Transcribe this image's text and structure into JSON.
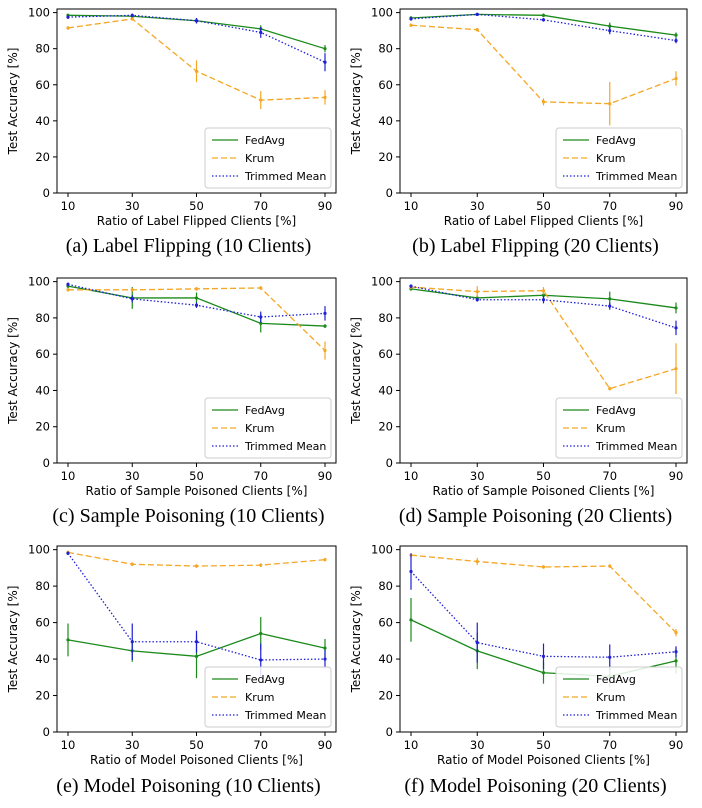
{
  "colors": {
    "fedavg": "#1a8a1a",
    "krum": "#f5a623",
    "trimmed": "#1f1fd6"
  },
  "chart_data": [
    {
      "type": "line",
      "caption": "(a) Label Flipping (10 Clients)",
      "xlabel": "Ratio of Label Flipped Clients [%]",
      "ylabel": "Test Accuracy [%]",
      "categories": [
        10,
        30,
        50,
        70,
        90
      ],
      "yticks": [
        0,
        20,
        40,
        60,
        80,
        100
      ],
      "ylim": [
        0,
        102
      ],
      "legend_position": "lower-right",
      "series": [
        {
          "name": "FedAvg",
          "style": "solid",
          "values": [
            98.5,
            98,
            95.5,
            91,
            80
          ],
          "err": [
            1,
            1,
            1.5,
            2,
            2
          ]
        },
        {
          "name": "Krum",
          "style": "dashed",
          "values": [
            91.5,
            96.5,
            67.5,
            51.5,
            53
          ],
          "err": [
            1,
            1,
            6,
            5,
            4
          ]
        },
        {
          "name": "Trimmed Mean",
          "style": "dotted",
          "values": [
            97.5,
            98.5,
            95.5,
            89,
            72.5
          ],
          "err": [
            1,
            1,
            1.5,
            3,
            5
          ]
        }
      ]
    },
    {
      "type": "line",
      "caption": "(b) Label Flipping (20 Clients)",
      "xlabel": "Ratio of Label Flipped Clients [%]",
      "ylabel": "Test Accuracy [%]",
      "categories": [
        10,
        30,
        50,
        70,
        90
      ],
      "yticks": [
        0,
        20,
        40,
        60,
        80,
        100
      ],
      "ylim": [
        0,
        102
      ],
      "legend_position": "lower-right",
      "series": [
        {
          "name": "FedAvg",
          "style": "solid",
          "values": [
            97,
            99,
            98.5,
            92.5,
            87.5
          ],
          "err": [
            1,
            0.5,
            1,
            2,
            1.5
          ]
        },
        {
          "name": "Krum",
          "style": "dashed",
          "values": [
            93,
            90.5,
            50.5,
            49.5,
            63.5
          ],
          "err": [
            1,
            1,
            2,
            12,
            4
          ]
        },
        {
          "name": "Trimmed Mean",
          "style": "dotted",
          "values": [
            96.5,
            99,
            96,
            90,
            84.5
          ],
          "err": [
            1,
            0.5,
            1,
            2,
            1.5
          ]
        }
      ]
    },
    {
      "type": "line",
      "caption": "(c) Sample Poisoning (10 Clients)",
      "xlabel": "Ratio of Sample Poisoned Clients [%]",
      "ylabel": "Test Accuracy [%]",
      "categories": [
        10,
        30,
        50,
        70,
        90
      ],
      "yticks": [
        0,
        20,
        40,
        60,
        80,
        100
      ],
      "ylim": [
        0,
        102
      ],
      "legend_position": "lower-right",
      "series": [
        {
          "name": "FedAvg",
          "style": "solid",
          "values": [
            97.5,
            91,
            91,
            77,
            75.5
          ],
          "err": [
            1,
            6,
            3,
            5,
            1
          ]
        },
        {
          "name": "Krum",
          "style": "dashed",
          "values": [
            95.5,
            95.5,
            96,
            96.5,
            62
          ],
          "err": [
            1,
            1,
            1,
            1,
            5
          ]
        },
        {
          "name": "Trimmed Mean",
          "style": "dotted",
          "values": [
            98.5,
            90.5,
            87,
            80.5,
            82.5
          ],
          "err": [
            1,
            2,
            1.5,
            3,
            4
          ]
        }
      ]
    },
    {
      "type": "line",
      "caption": "(d) Sample Poisoning (20 Clients)",
      "xlabel": "Ratio of Sample Poisoned Clients [%]",
      "ylabel": "Test Accuracy [%]",
      "categories": [
        10,
        30,
        50,
        70,
        90
      ],
      "yticks": [
        0,
        20,
        40,
        60,
        80,
        100
      ],
      "ylim": [
        0,
        102
      ],
      "legend_position": "lower-right",
      "series": [
        {
          "name": "FedAvg",
          "style": "solid",
          "values": [
            96,
            91,
            92.5,
            90.5,
            85.5
          ],
          "err": [
            1,
            1.5,
            2,
            4,
            3
          ]
        },
        {
          "name": "Krum",
          "style": "dashed",
          "values": [
            97,
            94.5,
            95,
            41,
            52
          ],
          "err": [
            1,
            3,
            2,
            1,
            14
          ]
        },
        {
          "name": "Trimmed Mean",
          "style": "dotted",
          "values": [
            97.5,
            90,
            90,
            86.5,
            74.5
          ],
          "err": [
            1,
            1,
            2,
            2,
            4
          ]
        }
      ]
    },
    {
      "type": "line",
      "caption": "(e) Model Poisoning (10 Clients)",
      "xlabel": "Ratio of Model Poisoned Clients [%]",
      "ylabel": "Test Accuracy [%]",
      "categories": [
        10,
        30,
        50,
        70,
        90
      ],
      "yticks": [
        0,
        20,
        40,
        60,
        80,
        100
      ],
      "ylim": [
        0,
        102
      ],
      "legend_position": "lower-right",
      "series": [
        {
          "name": "FedAvg",
          "style": "solid",
          "values": [
            50.5,
            44.5,
            41.5,
            54,
            46
          ],
          "err": [
            9,
            6,
            12,
            9,
            5
          ]
        },
        {
          "name": "Krum",
          "style": "dashed",
          "values": [
            98.5,
            92,
            91,
            91.5,
            94.5
          ],
          "err": [
            1,
            1,
            1,
            1,
            1
          ]
        },
        {
          "name": "Trimmed Mean",
          "style": "dotted",
          "values": [
            98,
            49.5,
            49.5,
            39.5,
            40
          ],
          "err": [
            1,
            10,
            6,
            9,
            5
          ]
        }
      ]
    },
    {
      "type": "line",
      "caption": "(f) Model Poisoning (20 Clients)",
      "xlabel": "Ratio of Model Poisoned Clients [%]",
      "ylabel": "Test Accuracy [%]",
      "categories": [
        10,
        30,
        50,
        70,
        90
      ],
      "yticks": [
        0,
        20,
        40,
        60,
        80,
        100
      ],
      "ylim": [
        0,
        102
      ],
      "legend_position": "lower-right",
      "series": [
        {
          "name": "FedAvg",
          "style": "solid",
          "values": [
            61.5,
            44.5,
            32.5,
            30.5,
            39
          ],
          "err": [
            12,
            10,
            6,
            6,
            7
          ]
        },
        {
          "name": "Krum",
          "style": "dashed",
          "values": [
            97,
            93.5,
            90.5,
            91,
            54.5
          ],
          "err": [
            1,
            2,
            1,
            1,
            2
          ]
        },
        {
          "name": "Trimmed Mean",
          "style": "dotted",
          "values": [
            88,
            49,
            41.5,
            41,
            44
          ],
          "err": [
            10,
            11,
            7,
            7,
            3
          ]
        }
      ]
    }
  ]
}
